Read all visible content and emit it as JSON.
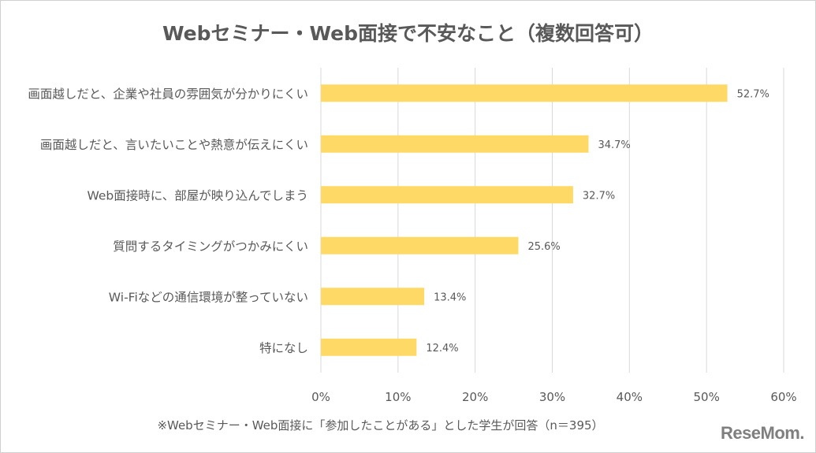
{
  "chart_data": {
    "type": "bar",
    "orientation": "horizontal",
    "title": "Webセミナー・Web面接で不安なこと（複数回答可）",
    "categories": [
      "画面越しだと、企業や社員の雰囲気が分かりにくい",
      "画面越しだと、言いたいことや熱意が伝えにくい",
      "Web面接時に、部屋が映り込んでしまう",
      "質問するタイミングがつかみにくい",
      "Wi-Fiなどの通信環境が整っていない",
      "特になし"
    ],
    "values": [
      52.7,
      34.7,
      32.7,
      25.6,
      13.4,
      12.4
    ],
    "data_labels": [
      "52.7%",
      "34.7%",
      "32.7%",
      "25.6%",
      "13.4%",
      "12.4%"
    ],
    "xlim": [
      0,
      60
    ],
    "ticks": [
      "0%",
      "10%",
      "20%",
      "30%",
      "40%",
      "50%",
      "60%"
    ],
    "grid": true,
    "bar_color": "#FFD966",
    "grid_color": "#D9D9D9"
  },
  "footnote": "※Webセミナー・Web面接に「参加したことがある」とした学生が回答（n＝395）",
  "logo": "ReseMom"
}
